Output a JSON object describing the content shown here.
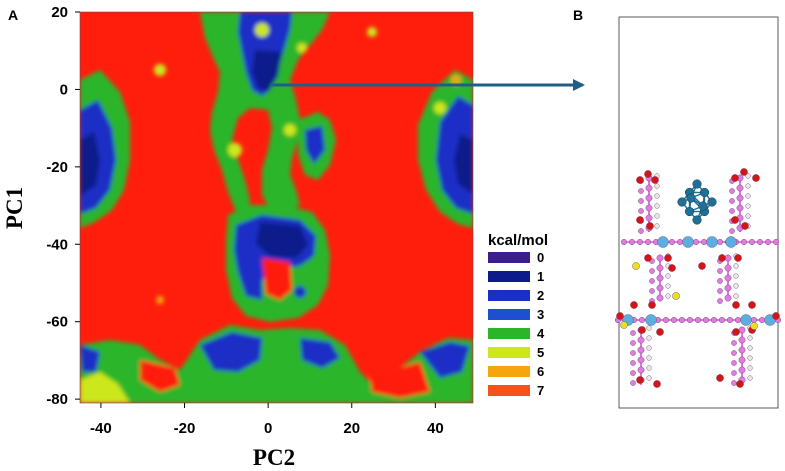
{
  "panel_a": {
    "letter": "A"
  },
  "panel_b": {
    "letter": "B"
  },
  "chart_data": {
    "type": "heatmap",
    "title": "",
    "xlabel": "PC2",
    "ylabel": "PC1",
    "xlim": [
      -45,
      49
    ],
    "ylim": [
      -81,
      20
    ],
    "xticks": [
      -40,
      -20,
      0,
      20,
      40
    ],
    "yticks": [
      20,
      0,
      -20,
      -40,
      -60,
      -80
    ],
    "colorbar": {
      "title": "kcal/mol",
      "levels": [
        0,
        1,
        2,
        3,
        4,
        5,
        6,
        7
      ],
      "colors": [
        "#3d1d8e",
        "#0c1a8a",
        "#1a2fc6",
        "#1d4fd0",
        "#2ab52a",
        "#cce81a",
        "#f5a60e",
        "#f4531c"
      ],
      "background": "#ff1e0c"
    },
    "minimum": {
      "pc2": 0,
      "pc1": 2
    }
  },
  "structure": {
    "colors": {
      "carbon": "#e07be0",
      "oxygen": "#d41515",
      "hydrogen": "#e8e8e8",
      "metal": "#5aaee0",
      "sulfur": "#e8e020",
      "cluster": "#1f6f96"
    }
  },
  "arrow": {
    "color": "#1f5f87"
  }
}
